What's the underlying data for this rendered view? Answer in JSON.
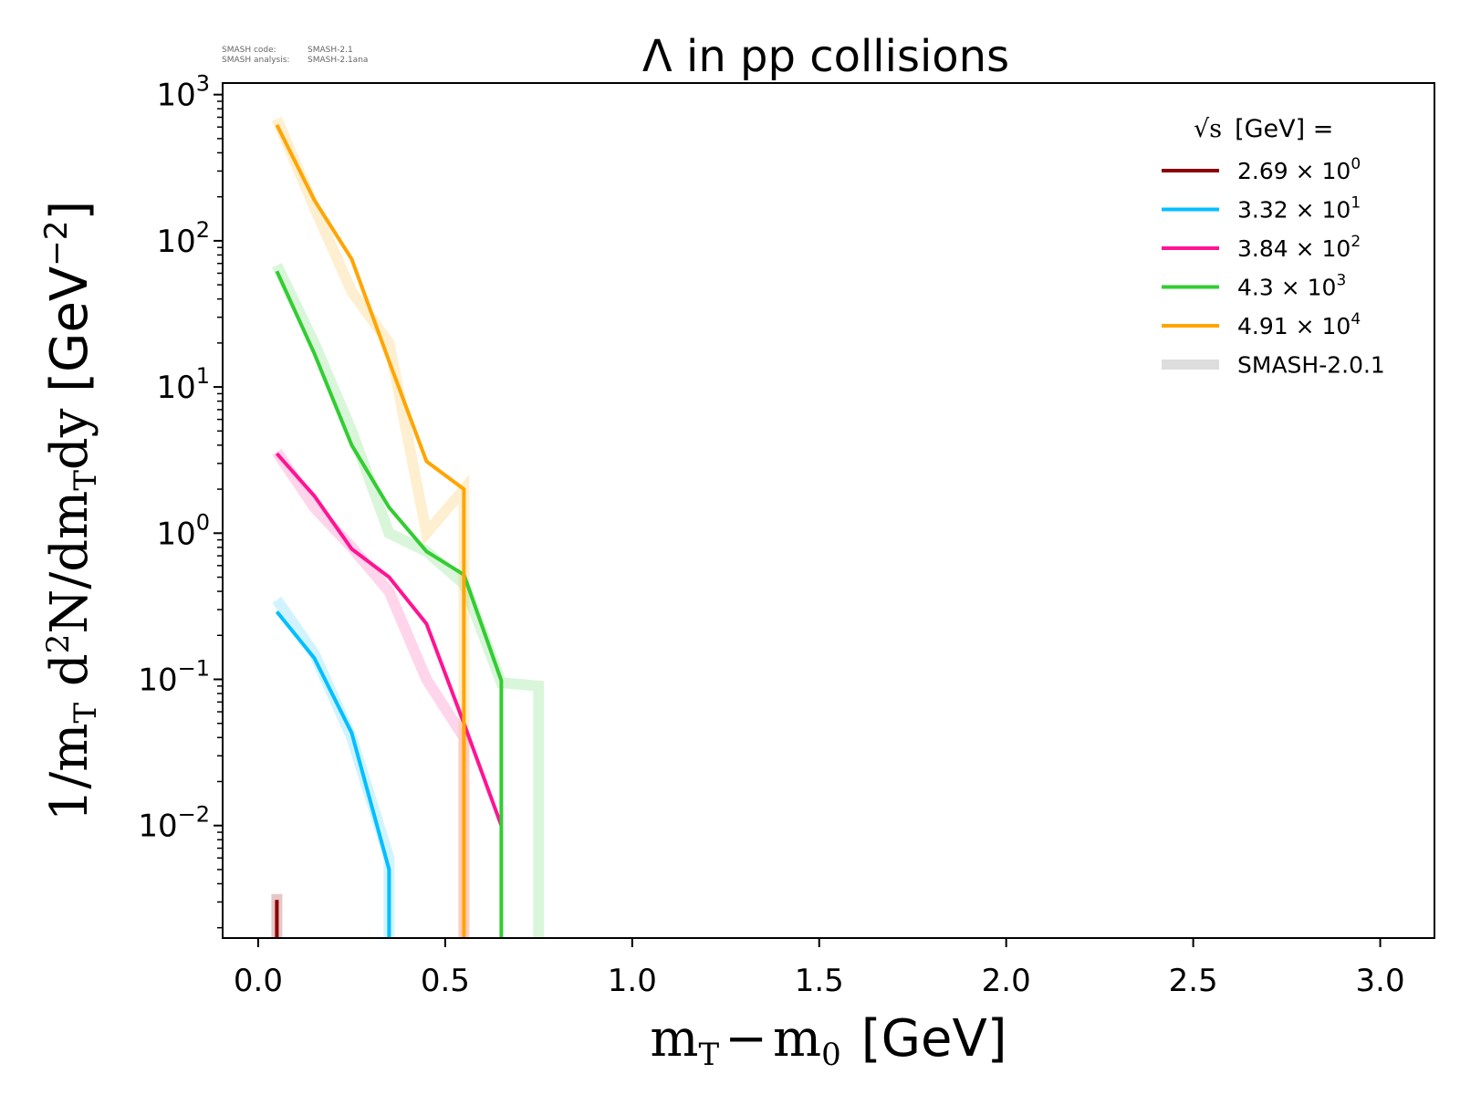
{
  "chart_data": {
    "type": "line",
    "title": "Λ in pp collisions",
    "xlabel": {
      "math": "m",
      "sub_T": "T",
      "minus": "−",
      "math2": "m",
      "sub_0": "0",
      "unit": "[GeV]"
    },
    "ylabel": {
      "prefix": "1/m",
      "sub_T": "T",
      "mid": " d",
      "sup_2": "2",
      "rest": "N/dm",
      "sub_T2": "T",
      "end": "dy ",
      "unit_open": "[GeV",
      "unit_sup": "−2",
      "unit_close": "]"
    },
    "x_ticks": [
      "0.0",
      "0.5",
      "1.0",
      "1.5",
      "2.0",
      "2.5",
      "3.0"
    ],
    "x_tick_values": [
      0.0,
      0.5,
      1.0,
      1.5,
      2.0,
      2.5,
      3.0
    ],
    "xlim": [
      -0.095,
      3.145
    ],
    "y_scale": "log",
    "ylim": [
      0.0017,
      1200
    ],
    "y_ticks": [
      {
        "value": 0.01,
        "base": "10",
        "exp": "−2"
      },
      {
        "value": 0.1,
        "base": "10",
        "exp": "−1"
      },
      {
        "value": 1,
        "base": "10",
        "exp": "0"
      },
      {
        "value": 10,
        "base": "10",
        "exp": "1"
      },
      {
        "value": 100,
        "base": "10",
        "exp": "2"
      },
      {
        "value": 1000,
        "base": "10",
        "exp": "3"
      }
    ],
    "legend": {
      "title": "[GeV] =",
      "title_symbol": "√s",
      "position": "top-right",
      "entries": [
        {
          "mantissa": "2.69",
          "times": "×",
          "base": "10",
          "exp": "0",
          "color": "#8b0000"
        },
        {
          "mantissa": "3.32",
          "times": "×",
          "base": "10",
          "exp": "1",
          "color": "#00bfff"
        },
        {
          "mantissa": "3.84",
          "times": "×",
          "base": "10",
          "exp": "2",
          "color": "#ff1493"
        },
        {
          "mantissa": "4.3",
          "times": "×",
          "base": "10",
          "exp": "3",
          "color": "#32cd32"
        },
        {
          "mantissa": "4.91",
          "times": "×",
          "base": "10",
          "exp": "4",
          "color": "#ffa500"
        },
        {
          "label": "SMASH-2.0.1",
          "color": "#dddddd"
        }
      ]
    },
    "series": [
      {
        "name": "2.69 GeV",
        "color": "#8b0000",
        "opacity": 1.0,
        "width": 4,
        "x": [
          0.05,
          0.05
        ],
        "y": [
          0.0031,
          0.0017
        ]
      },
      {
        "name": "33.2 GeV",
        "color": "#00bfff",
        "opacity": 1.0,
        "width": 4,
        "x": [
          0.05,
          0.15,
          0.25,
          0.35,
          0.35
        ],
        "y": [
          0.29,
          0.14,
          0.043,
          0.005,
          0.0017
        ]
      },
      {
        "name": "384 GeV",
        "color": "#ff1493",
        "opacity": 1.0,
        "width": 4,
        "x": [
          0.05,
          0.15,
          0.25,
          0.35,
          0.45,
          0.55,
          0.65
        ],
        "y": [
          3.5,
          1.8,
          0.78,
          0.5,
          0.24,
          0.05,
          0.01
        ]
      },
      {
        "name": "4300 GeV",
        "color": "#32cd32",
        "opacity": 1.0,
        "width": 4,
        "x": [
          0.05,
          0.15,
          0.25,
          0.35,
          0.45,
          0.55,
          0.65,
          0.65
        ],
        "y": [
          62,
          17,
          4.0,
          1.5,
          0.75,
          0.52,
          0.098,
          0.0017
        ]
      },
      {
        "name": "49100 GeV",
        "color": "#ffa500",
        "opacity": 1.0,
        "width": 4,
        "x": [
          0.05,
          0.15,
          0.25,
          0.35,
          0.45,
          0.55,
          0.55
        ],
        "y": [
          620,
          190,
          75,
          15,
          3.1,
          2.0,
          0.0017
        ]
      },
      {
        "name": "SMASH-2.0.1 2.69 GeV",
        "color": "#8b0000",
        "opacity": 0.22,
        "width": 12,
        "x": [
          0.05,
          0.05
        ],
        "y": [
          0.0034,
          0.0017
        ]
      },
      {
        "name": "SMASH-2.0.1 33.2 GeV",
        "color": "#00bfff",
        "opacity": 0.18,
        "width": 12,
        "x": [
          0.05,
          0.15,
          0.25,
          0.35,
          0.35
        ],
        "y": [
          0.35,
          0.15,
          0.04,
          0.006,
          0.0017
        ]
      },
      {
        "name": "SMASH-2.0.1 384 GeV",
        "color": "#ff1493",
        "opacity": 0.18,
        "width": 12,
        "x": [
          0.05,
          0.15,
          0.25,
          0.35,
          0.45,
          0.55,
          0.55
        ],
        "y": [
          3.6,
          1.5,
          0.8,
          0.4,
          0.1,
          0.04,
          0.0017
        ]
      },
      {
        "name": "SMASH-2.0.1 4300 GeV",
        "color": "#32cd32",
        "opacity": 0.18,
        "width": 12,
        "x": [
          0.05,
          0.15,
          0.25,
          0.35,
          0.45,
          0.55,
          0.65,
          0.75,
          0.75
        ],
        "y": [
          68,
          20,
          5.0,
          1.0,
          0.75,
          0.45,
          0.095,
          0.09,
          0.0017
        ]
      },
      {
        "name": "SMASH-2.0.1 49100 GeV",
        "color": "#ffa500",
        "opacity": 0.18,
        "width": 12,
        "x": [
          0.05,
          0.15,
          0.25,
          0.35,
          0.45,
          0.55,
          0.55
        ],
        "y": [
          680,
          170,
          45,
          20,
          1.0,
          2.0,
          0.0017
        ]
      }
    ]
  },
  "annotation": {
    "line1_label": "SMASH code:",
    "line1_value": "SMASH-2.1",
    "line2_label": "SMASH analysis:",
    "line2_value": "SMASH-2.1ana"
  }
}
